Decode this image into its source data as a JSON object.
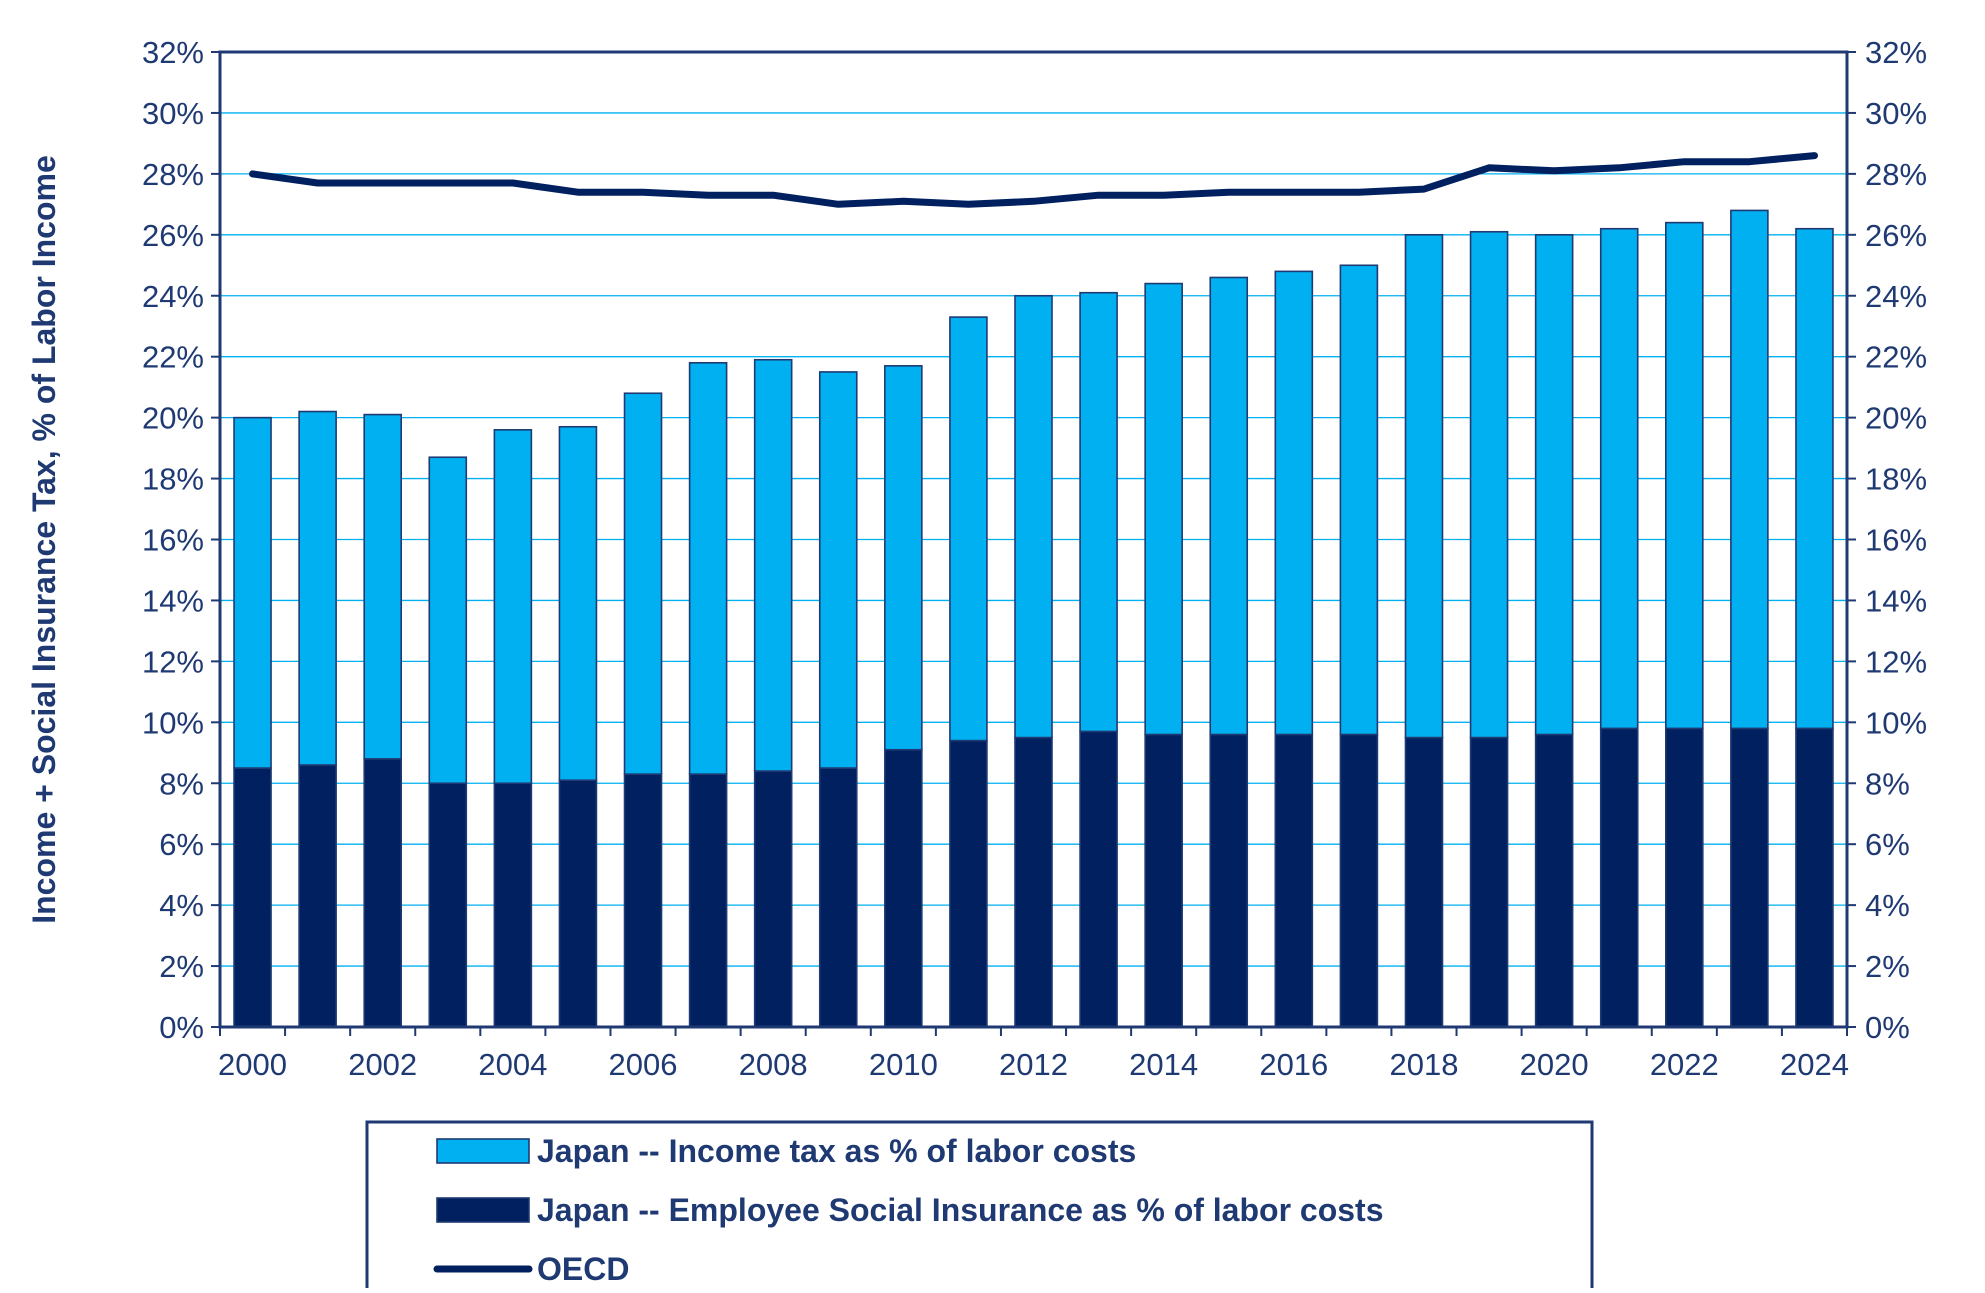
{
  "chart_data": {
    "type": "bar",
    "stacked": true,
    "ylabel": "Income + Social Insurance Tax, % of  Labor Income",
    "ylim": [
      0,
      32
    ],
    "y_ticks": [
      "0%",
      "2%",
      "4%",
      "6%",
      "8%",
      "10%",
      "12%",
      "14%",
      "16%",
      "18%",
      "20%",
      "22%",
      "24%",
      "26%",
      "28%",
      "30%",
      "32%"
    ],
    "secondary_y_ticks": [
      "0%",
      "2%",
      "4%",
      "6%",
      "8%",
      "10%",
      "12%",
      "14%",
      "16%",
      "18%",
      "20%",
      "22%",
      "24%",
      "26%",
      "28%",
      "30%",
      "32%"
    ],
    "categories": [
      "2000",
      "2001",
      "2002",
      "2003",
      "2004",
      "2005",
      "2006",
      "2007",
      "2008",
      "2009",
      "2010",
      "2011",
      "2012",
      "2013",
      "2014",
      "2015",
      "2016",
      "2017",
      "2018",
      "2019",
      "2020",
      "2021",
      "2022",
      "2023",
      "2024"
    ],
    "x_tick_labels": [
      "2000",
      "2002",
      "2004",
      "2006",
      "2008",
      "2010",
      "2012",
      "2014",
      "2016",
      "2018",
      "2020",
      "2022",
      "2024"
    ],
    "series": [
      {
        "name": "Japan -- Employee Social Insurance as % of labor costs",
        "kind": "bar",
        "color": "#002060",
        "values": [
          8.5,
          8.6,
          8.8,
          8.0,
          8.0,
          8.1,
          8.3,
          8.3,
          8.4,
          8.5,
          9.1,
          9.4,
          9.5,
          9.7,
          9.6,
          9.6,
          9.6,
          9.6,
          9.5,
          9.5,
          9.6,
          9.8,
          9.8,
          9.8,
          9.8
        ]
      },
      {
        "name": "Japan -- Income tax as % of labor costs",
        "kind": "bar",
        "color": "#00B0F0",
        "values": [
          11.5,
          11.6,
          11.3,
          10.7,
          11.6,
          11.6,
          12.5,
          13.5,
          13.5,
          13.0,
          12.6,
          13.9,
          14.5,
          14.4,
          14.8,
          15.0,
          15.2,
          15.4,
          16.5,
          16.6,
          16.4,
          16.4,
          16.6,
          17.0,
          16.4
        ]
      },
      {
        "name": "OECD",
        "kind": "line",
        "color": "#002060",
        "values": [
          28.0,
          27.7,
          27.7,
          27.7,
          27.7,
          27.4,
          27.4,
          27.3,
          27.3,
          27.0,
          27.1,
          27.0,
          27.1,
          27.3,
          27.3,
          27.4,
          27.4,
          27.4,
          27.5,
          28.2,
          28.1,
          28.2,
          28.4,
          28.4,
          28.6
        ]
      }
    ],
    "legend": {
      "placement": "bottom",
      "entries": [
        {
          "label": "Japan -- Income tax as % of labor costs",
          "symbol": "bar",
          "color": "#00B0F0"
        },
        {
          "label": "Japan -- Employee Social Insurance as % of labor costs",
          "symbol": "bar",
          "color": "#002060"
        },
        {
          "label": "OECD",
          "symbol": "line",
          "color": "#002060"
        }
      ]
    },
    "grid": true,
    "colors": {
      "text": "#1F3A73",
      "frame": "#1F3A73",
      "grid": "#00B0F0",
      "bar_outline": "#1F3A73"
    }
  }
}
